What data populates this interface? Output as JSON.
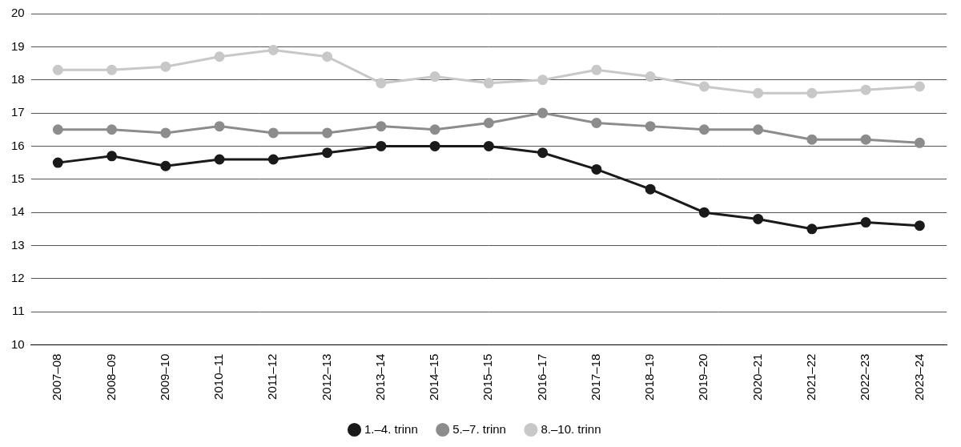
{
  "chart_data": {
    "type": "line",
    "categories": [
      "2007–08",
      "2008–09",
      "2009–10",
      "2010–11",
      "2011–12",
      "2012–13",
      "2013–14",
      "2014–15",
      "2015–15",
      "2016–17",
      "2017–18",
      "2018–19",
      "2019–20",
      "2020–21",
      "2021–22",
      "2022–23",
      "2023–24"
    ],
    "series": [
      {
        "name": "1.–4. trinn",
        "color": "#1a1a1a",
        "marker": "circle",
        "line_style": "solid",
        "values": [
          15.5,
          15.7,
          15.4,
          15.6,
          15.6,
          15.8,
          16.0,
          16.0,
          16.0,
          15.8,
          15.3,
          14.7,
          14.0,
          13.8,
          13.5,
          13.7,
          13.6
        ]
      },
      {
        "name": "5.–7. trinn",
        "color": "#8c8c8c",
        "marker": "circle",
        "line_style": "solid",
        "values": [
          16.5,
          16.5,
          16.4,
          16.6,
          16.4,
          16.4,
          16.6,
          16.5,
          16.7,
          17.0,
          16.7,
          16.6,
          16.5,
          16.5,
          16.2,
          16.2,
          16.1
        ]
      },
      {
        "name": "8.–10. trinn",
        "color": "#c8c8c8",
        "marker": "circle",
        "line_style": "solid",
        "values": [
          18.3,
          18.3,
          18.4,
          18.7,
          18.9,
          18.7,
          17.9,
          18.1,
          17.9,
          18.0,
          18.3,
          18.1,
          17.8,
          17.6,
          17.6,
          17.7,
          17.8
        ]
      }
    ],
    "ylim": [
      10,
      20
    ],
    "yticks": [
      10,
      11,
      12,
      13,
      14,
      15,
      16,
      17,
      18,
      19,
      20
    ],
    "grid": true,
    "legend": "bottom"
  }
}
